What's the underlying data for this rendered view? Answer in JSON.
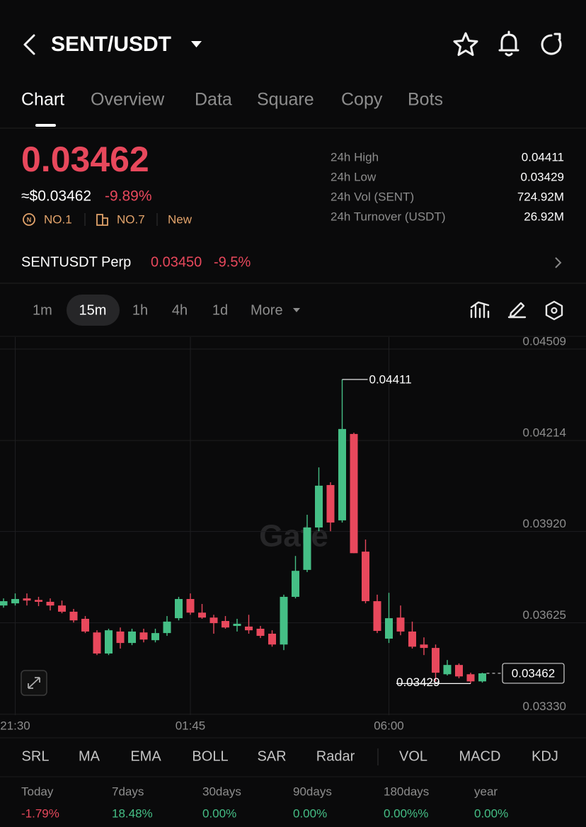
{
  "header": {
    "title": "SENT/USDT"
  },
  "tabs": [
    "Chart",
    "Overview",
    "Data",
    "Square",
    "Copy",
    "Bots"
  ],
  "price": {
    "last": "0.03462",
    "usd": "≈$0.03462",
    "change": "-9.89%",
    "badges": [
      "NO.1",
      "NO.7",
      "New"
    ]
  },
  "stats": [
    {
      "label": "24h High",
      "value": "0.04411"
    },
    {
      "label": "24h Low",
      "value": "0.03429"
    },
    {
      "label": "24h Vol (SENT)",
      "value": "724.92M"
    },
    {
      "label": "24h Turnover (USDT)",
      "value": "26.92M"
    }
  ],
  "perp": {
    "name": "SENTUSDT Perp",
    "price": "0.03450",
    "change": "-9.5%"
  },
  "timeframes": [
    "1m",
    "15m",
    "1h",
    "4h",
    "1d",
    "More"
  ],
  "chart_data": {
    "type": "candlestick",
    "watermark": "Gate",
    "categories": [
      null,
      "21:30",
      null,
      null,
      null,
      null,
      null,
      null,
      null,
      null,
      null,
      null,
      null,
      null,
      null,
      null,
      "01:45",
      null,
      null,
      null,
      null,
      null,
      null,
      null,
      null,
      null,
      null,
      null,
      null,
      null,
      null,
      null,
      null,
      "06:00",
      null,
      null,
      null,
      null,
      null,
      null,
      null,
      null
    ],
    "open": [
      0.03681,
      0.03688,
      0.03704,
      0.03699,
      0.03693,
      0.03681,
      0.03661,
      0.03638,
      0.03594,
      0.03526,
      0.03597,
      0.0356,
      0.03594,
      0.03569,
      0.03592,
      0.0364,
      0.03702,
      0.03658,
      0.03642,
      0.03631,
      0.03615,
      0.03613,
      0.03606,
      0.0359,
      0.03555,
      0.03709,
      0.03796,
      0.03933,
      0.0407,
      0.03956,
      0.04235,
      0.03855,
      0.03695,
      0.03574,
      0.03642,
      0.03597,
      0.03555,
      0.03544,
      0.03459,
      0.03489,
      0.03459,
      0.03436
    ],
    "high": [
      0.03704,
      0.0372,
      0.0372,
      0.03709,
      0.03704,
      0.03697,
      0.0367,
      0.03647,
      0.03601,
      0.03606,
      0.0361,
      0.03606,
      0.03606,
      0.03606,
      0.03647,
      0.03709,
      0.0372,
      0.03686,
      0.03651,
      0.03647,
      0.03638,
      0.03651,
      0.03615,
      0.03601,
      0.03716,
      0.03841,
      0.03974,
      0.04127,
      0.04079,
      0.04411,
      0.04239,
      0.03894,
      0.03716,
      0.03722,
      0.03681,
      0.03629,
      0.03578,
      0.03555,
      0.03505,
      0.03494,
      0.03464,
      0.03464
    ],
    "low": [
      0.03674,
      0.03681,
      0.03681,
      0.03679,
      0.03665,
      0.03656,
      0.03626,
      0.03592,
      0.03521,
      0.03521,
      0.03542,
      0.03553,
      0.03562,
      0.03562,
      0.03583,
      0.03633,
      0.03651,
      0.03638,
      0.0359,
      0.03606,
      0.03597,
      0.0359,
      0.03576,
      0.03548,
      0.03537,
      0.03704,
      0.03789,
      0.03921,
      0.03921,
      0.03949,
      0.0385,
      0.03688,
      0.03592,
      0.0356,
      0.03585,
      0.03542,
      0.03521,
      0.03436,
      0.03455,
      0.03446,
      0.03429,
      0.03432
    ],
    "close": [
      0.03695,
      0.03702,
      0.03697,
      0.03693,
      0.03681,
      0.03661,
      0.03633,
      0.03597,
      0.03526,
      0.03601,
      0.0356,
      0.03597,
      0.03571,
      0.03592,
      0.03629,
      0.03702,
      0.03658,
      0.03642,
      0.03624,
      0.0361,
      0.03622,
      0.03601,
      0.03583,
      0.03555,
      0.03709,
      0.03793,
      0.03933,
      0.04068,
      0.03949,
      0.04251,
      0.0385,
      0.03695,
      0.03599,
      0.0364,
      0.03597,
      0.03548,
      0.03544,
      0.03464,
      0.03489,
      0.03452,
      0.03436,
      0.03462
    ],
    "up_color": "#45bf86",
    "down_color": "#e8485c",
    "ylim": [
      0.03327,
      0.04548
    ],
    "yticks": [
      0.04509,
      0.04214,
      {
        "value": 0.0392,
        "label": "0.03920"
      },
      0.03625,
      {
        "value": 0.0333,
        "label": "0.03330"
      }
    ],
    "grid": true,
    "max_label": 0.04411,
    "min_label": 0.03429,
    "last_price": 0.03462
  },
  "indicators": [
    "SRL",
    "MA",
    "EMA",
    "BOLL",
    "SAR",
    "Radar",
    "VOL",
    "MACD",
    "KDJ"
  ],
  "performance": [
    {
      "label": "Today",
      "value": "-1.79%"
    },
    {
      "label": "7days",
      "value": "18.48%"
    },
    {
      "label": "30days",
      "value": "0.00%"
    },
    {
      "label": "90days",
      "value": "0.00%"
    },
    {
      "label": "180days",
      "value": "0.00%%"
    },
    {
      "label": "year",
      "value": "0.00%"
    }
  ]
}
